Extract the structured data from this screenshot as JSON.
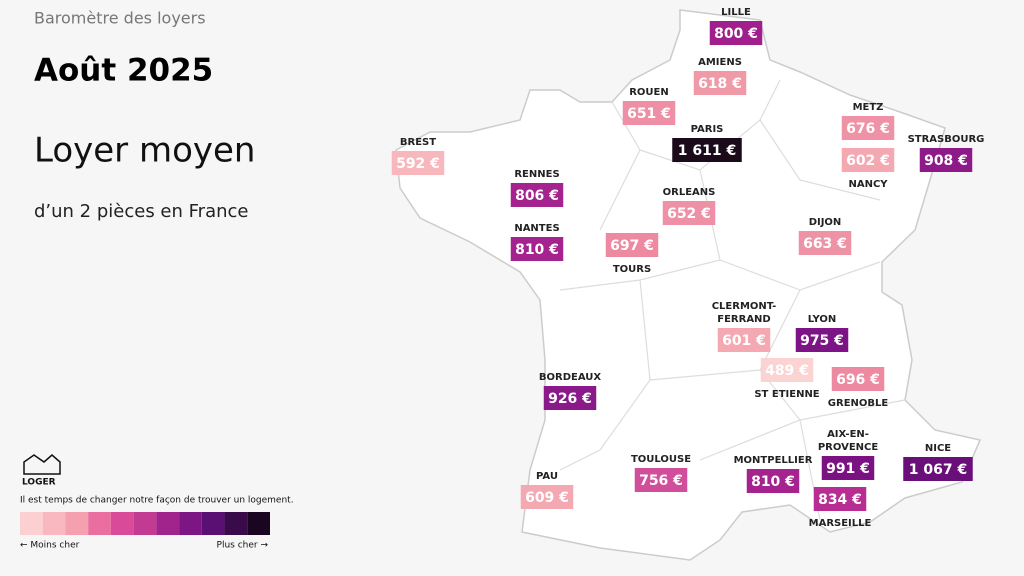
{
  "header": {
    "kicker": "Baromètre des loyers",
    "date": "Août 2025",
    "title": "Loyer moyen",
    "subtitle": "d’un 2 pièces en France"
  },
  "cities": [
    {
      "label": [
        "LILLE"
      ],
      "price": "800 €",
      "color": "#a01f8d"
    },
    {
      "label": [
        "AMIENS"
      ],
      "price": "618 €",
      "color": "#f09aa8"
    },
    {
      "label": [
        "ROUEN"
      ],
      "price": "651 €",
      "color": "#ef8fa5"
    },
    {
      "label": [
        "PARIS"
      ],
      "price": "1 611 €",
      "color": "#1a0a1a"
    },
    {
      "label": [
        "METZ"
      ],
      "price": "676 €",
      "color": "#ef92a5"
    },
    {
      "label": [
        "STRASBOURG"
      ],
      "price": "908 €",
      "color": "#8e1a8a"
    },
    {
      "label": [
        "NANCY"
      ],
      "price": "602 €",
      "color": "#f4a8b2"
    },
    {
      "label": [
        "BREST"
      ],
      "price": "592 €",
      "color": "#f7b7bd"
    },
    {
      "label": [
        "RENNES"
      ],
      "price": "806 €",
      "color": "#a5238e"
    },
    {
      "label": [
        "ORLEANS"
      ],
      "price": "652 €",
      "color": "#ee90a6"
    },
    {
      "label": [
        "DIJON"
      ],
      "price": "663 €",
      "color": "#ee92a6"
    },
    {
      "label": [
        "NANTES"
      ],
      "price": "810 €",
      "color": "#a5238e"
    },
    {
      "label": [
        "TOURS"
      ],
      "price": "697 €",
      "color": "#ed8aa2"
    },
    {
      "label": [
        "CLERMONT-",
        "FERRAND"
      ],
      "price": "601 €",
      "color": "#f4a8b2"
    },
    {
      "label": [
        "LYON"
      ],
      "price": "975 €",
      "color": "#7d1485"
    },
    {
      "label": [
        "ST ETIENNE"
      ],
      "price": "489 €",
      "color": "#fbd3d3"
    },
    {
      "label": [
        "GRENOBLE"
      ],
      "price": "696 €",
      "color": "#ed8aa2"
    },
    {
      "label": [
        "BORDEAUX"
      ],
      "price": "926 €",
      "color": "#8a1a8a"
    },
    {
      "label": [
        "AIX-EN-",
        "PROVENCE"
      ],
      "price": "991 €",
      "color": "#7a1282"
    },
    {
      "label": [
        "NICE"
      ],
      "price": "1 067 €",
      "color": "#6a0f7a"
    },
    {
      "label": [
        "TOULOUSE"
      ],
      "price": "756 €",
      "color": "#d14f9a"
    },
    {
      "label": [
        "MONTPELLIER"
      ],
      "price": "810 €",
      "color": "#a5238e"
    },
    {
      "label": [
        "MARSEILLE"
      ],
      "price": "834 €",
      "color": "#b82d91"
    },
    {
      "label": [
        "PAU"
      ],
      "price": "609 €",
      "color": "#f4a8b2"
    }
  ],
  "brand": {
    "name": "LOGER",
    "tagline": "Il est temps de changer notre façon de trouver un logement."
  },
  "legend": {
    "low": "← Moins cher",
    "high": "Plus cher →",
    "colors": [
      "#fcd0d0",
      "#f9b8bf",
      "#f4a0ae",
      "#ea6fa0",
      "#d94a98",
      "#c23a92",
      "#a0248c",
      "#7e1585",
      "#5a0f72",
      "#3a0b4a",
      "#1a0620"
    ]
  }
}
